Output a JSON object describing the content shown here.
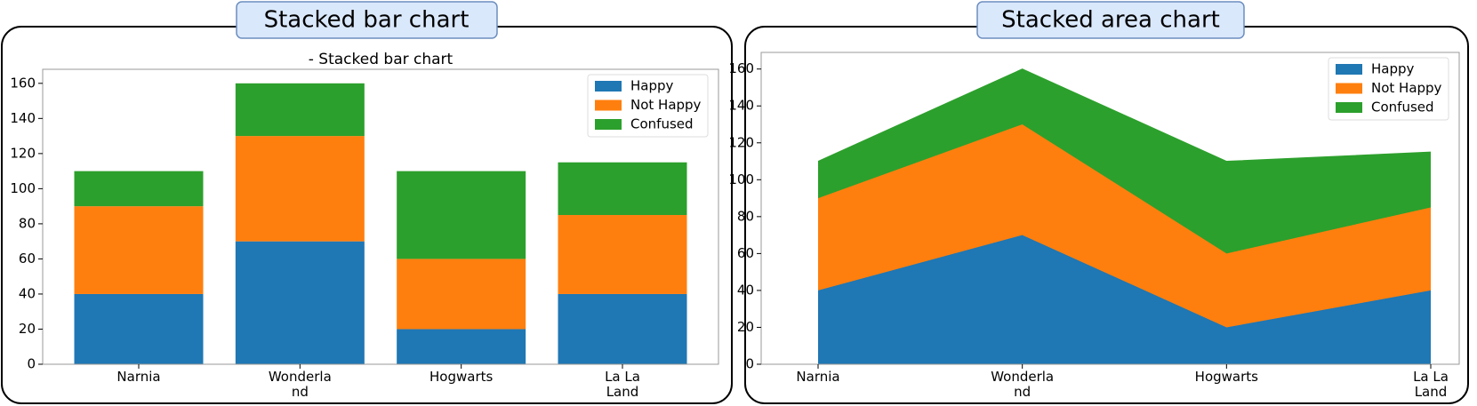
{
  "chart_data": [
    {
      "type": "bar",
      "panel_title": "Stacked bar chart",
      "title": "- Stacked bar chart",
      "categories": [
        "Narnia",
        "Wonderla\nnd",
        "Hogwarts",
        "La La\nLand"
      ],
      "series": [
        {
          "name": "Happy",
          "color": "#1f77b4",
          "values": [
            40,
            70,
            20,
            40
          ]
        },
        {
          "name": "Not Happy",
          "color": "#ff7f0e",
          "values": [
            50,
            60,
            40,
            45
          ]
        },
        {
          "name": "Confused",
          "color": "#2ca02c",
          "values": [
            20,
            30,
            50,
            30
          ]
        }
      ],
      "ylim": [
        0,
        168
      ],
      "yticks": [
        0,
        20,
        40,
        60,
        80,
        100,
        120,
        140,
        160
      ],
      "legend": "upper right"
    },
    {
      "type": "area",
      "panel_title": "Stacked area chart",
      "categories": [
        "Narnia",
        "Wonderla\nnd",
        "Hogwarts",
        "La La\nLand"
      ],
      "series": [
        {
          "name": "Happy",
          "color": "#1f77b4",
          "values": [
            40,
            70,
            20,
            40
          ]
        },
        {
          "name": "Not Happy",
          "color": "#ff7f0e",
          "values": [
            50,
            60,
            40,
            45
          ]
        },
        {
          "name": "Confused",
          "color": "#2ca02c",
          "values": [
            20,
            30,
            50,
            30
          ]
        }
      ],
      "ylim": [
        0,
        169
      ],
      "yticks": [
        0,
        20,
        40,
        60,
        80,
        100,
        120,
        140,
        160
      ],
      "legend": "upper right"
    }
  ]
}
